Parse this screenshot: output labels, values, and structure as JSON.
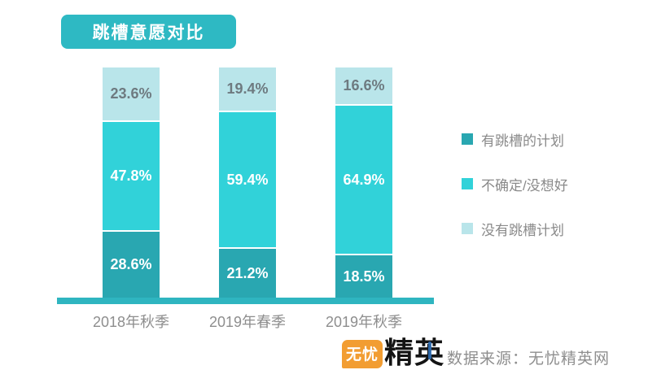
{
  "header": {
    "title": "跳槽意愿对比",
    "badge_color": "#2eb9c3"
  },
  "chart_data": {
    "type": "bar",
    "stacked": true,
    "unit": "%",
    "ylim": [
      0,
      100
    ],
    "grid": false,
    "legend_position": "right",
    "categories": [
      "2018年秋季",
      "2019年春季",
      "2019年秋季"
    ],
    "series": [
      {
        "name": "有跳槽的计划",
        "values": [
          28.6,
          21.2,
          18.5
        ],
        "color": "#29a7b1",
        "label_color": "#ffffff"
      },
      {
        "name": "不确定/没想好",
        "values": [
          47.8,
          59.4,
          64.9
        ],
        "color": "#31d2d9",
        "label_color": "#ffffff"
      },
      {
        "name": "没有跳槽计划",
        "values": [
          23.6,
          19.4,
          16.6
        ],
        "color": "#b9e5ea",
        "label_color": "#6e7a80"
      }
    ],
    "stack_order_top_to_bottom": [
      "没有跳槽计划",
      "不确定/没想好",
      "有跳槽的计划"
    ],
    "axis_color": "#2fb5c0"
  },
  "footer": {
    "logo": {
      "part1": "无忧",
      "part2": "精英"
    },
    "source": "数据来源：无忧精英网"
  }
}
